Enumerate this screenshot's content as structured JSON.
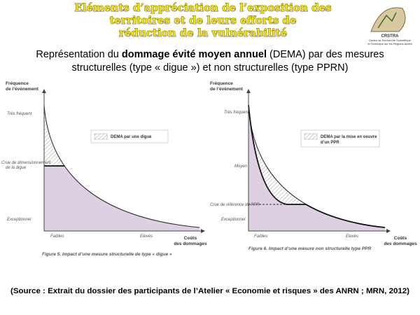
{
  "header": {
    "title_lines": [
      "Eléments d’appréciation de l’exposition des",
      "territoires et de leurs efforts de",
      "réduction de la vulnérabilité"
    ],
    "logo": {
      "name": "CRSTRA",
      "lines": [
        "Centre de Recherche Scientifique",
        "et Technique sur les Régions Arides"
      ]
    }
  },
  "subtitle": {
    "line1": [
      "Représentation du ",
      "dommage évité moyen annuel",
      " (DEMA) par des mesures"
    ],
    "line2": "structurelles (type « digue ») et non structurelles (type PPRN)"
  },
  "figures": [
    {
      "y_axis_label": [
        "Fréquence",
        "de l’évènement"
      ],
      "y_ticks": [
        "Très fréquent",
        "Crue de dimensionnement",
        "de la digue",
        "Exceptionnel"
      ],
      "x_ticks": [
        "Faibles",
        "Elevés"
      ],
      "x_axis_label": [
        "Coûts",
        "des dommages"
      ],
      "legend": [
        "DEMA par une digue"
      ],
      "caption": "Figure 5. Impact d’une mesure structurelle de type « digue »"
    },
    {
      "y_axis_label": [
        "Fréquence",
        "de l’évènement"
      ],
      "y_ticks": [
        "Très fréquent",
        "Moyen",
        "Crue de référence du PPR",
        "Exceptionnel"
      ],
      "x_ticks": [
        "Faibles",
        "Elevés"
      ],
      "x_axis_label": [
        "Coûts",
        "des dommages"
      ],
      "legend": [
        "DEMA par la mise en oeuvre",
        "d’un PPR"
      ],
      "caption": "Figure 6. Impact d’une mesure non structurelle type PPR"
    }
  ],
  "source": "(Source : Extrait du dossier des participants de l’Atelier « Economie et risques » des ANRN ; MRN, 2012)"
}
